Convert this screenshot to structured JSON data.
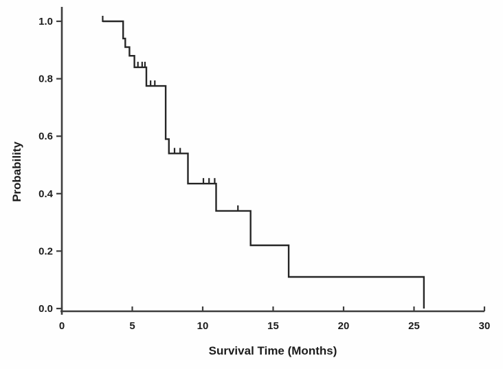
{
  "figure": {
    "background": "#fefefe",
    "curve_color": "#262626",
    "axis_color": "#3d3d3d",
    "text_color": "#1c1c1c"
  },
  "chart_data": {
    "type": "line",
    "subtype": "kaplan-meier-step-curve",
    "title": "",
    "xlabel": "Survival Time (Months)",
    "ylabel": "Probability",
    "xlim": [
      0,
      30
    ],
    "ylim": [
      0.0,
      1.0
    ],
    "x_ticks": [
      0,
      5,
      10,
      15,
      20,
      25,
      30
    ],
    "x_tick_labels": [
      "0",
      "5",
      "10",
      "15",
      "20",
      "25",
      "30"
    ],
    "y_ticks": [
      0.0,
      0.2,
      0.4,
      0.6,
      0.8,
      1.0
    ],
    "y_tick_labels": [
      "0.0",
      "0.2",
      "0.4",
      "0.6",
      "0.8",
      "1.0"
    ],
    "grid": false,
    "legend": null,
    "steps": [
      [
        2.9,
        1.0
      ],
      [
        4.35,
        1.0
      ],
      [
        4.35,
        0.94
      ],
      [
        4.5,
        0.94
      ],
      [
        4.5,
        0.91
      ],
      [
        4.8,
        0.91
      ],
      [
        4.8,
        0.88
      ],
      [
        5.15,
        0.88
      ],
      [
        5.15,
        0.84
      ],
      [
        6.0,
        0.84
      ],
      [
        6.0,
        0.775
      ],
      [
        7.37,
        0.775
      ],
      [
        7.37,
        0.59
      ],
      [
        7.6,
        0.59
      ],
      [
        7.6,
        0.54
      ],
      [
        8.95,
        0.54
      ],
      [
        8.95,
        0.435
      ],
      [
        10.95,
        0.435
      ],
      [
        10.95,
        0.34
      ],
      [
        13.4,
        0.34
      ],
      [
        13.4,
        0.22
      ],
      [
        16.1,
        0.22
      ],
      [
        16.1,
        0.11
      ],
      [
        25.7,
        0.11
      ],
      [
        25.7,
        0.0
      ]
    ],
    "censor_marks": [
      [
        2.9,
        1.0
      ],
      [
        5.4,
        0.84
      ],
      [
        5.7,
        0.84
      ],
      [
        5.9,
        0.84
      ],
      [
        6.3,
        0.775
      ],
      [
        6.6,
        0.775
      ],
      [
        8.0,
        0.54
      ],
      [
        8.4,
        0.54
      ],
      [
        10.05,
        0.435
      ],
      [
        10.45,
        0.435
      ],
      [
        10.85,
        0.435
      ],
      [
        12.5,
        0.34
      ]
    ]
  }
}
